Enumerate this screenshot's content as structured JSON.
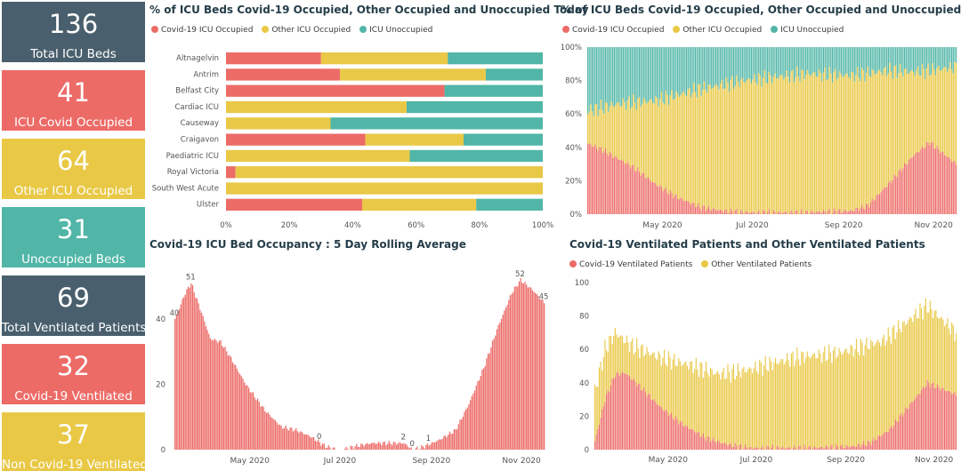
{
  "colors": {
    "covid": "#ec6b67",
    "other": "#e9c846",
    "unoccupied": "#51b6a7",
    "navy": "#495f6d"
  },
  "cards": [
    {
      "value": "136",
      "label": "Total ICU Beds",
      "color": "#495f6d"
    },
    {
      "value": "41",
      "label": "ICU Covid Occupied",
      "color": "#ec6b67"
    },
    {
      "value": "64",
      "label": "Other ICU Occupied",
      "color": "#e9c846"
    },
    {
      "value": "31",
      "label": "Unoccupied Beds",
      "color": "#51b6a7"
    },
    {
      "value": "69",
      "label": "Total Ventilated Patients",
      "color": "#495f6d"
    },
    {
      "value": "32",
      "label": "Covid-19 Ventilated",
      "color": "#ec6b67"
    },
    {
      "value": "37",
      "label": "Non Covid-19 Ventilated",
      "color": "#e9c846"
    }
  ],
  "chart_data": [
    {
      "type": "bar",
      "orientation": "horizontal",
      "stacked": true,
      "title": "% of ICU Beds Covid-19 Occupied, Other Occupied and Unoccupied Today",
      "categories": [
        "Altnagelvin",
        "Antrim",
        "Belfast City",
        "Cardiac ICU",
        "Causeway",
        "Craigavon",
        "Paediatric ICU",
        "Royal Victoria",
        "South West Acute",
        "Ulster"
      ],
      "series": [
        {
          "name": "Covid-19 ICU Occupied",
          "values": [
            30,
            36,
            69,
            0,
            0,
            44,
            0,
            3,
            0,
            43
          ]
        },
        {
          "name": "Other ICU Occupied",
          "values": [
            40,
            46,
            0,
            57,
            33,
            31,
            58,
            97,
            100,
            36
          ]
        },
        {
          "name": "ICU Unoccupied",
          "values": [
            30,
            18,
            31,
            43,
            67,
            25,
            42,
            0,
            0,
            21
          ]
        }
      ],
      "xlim": [
        0,
        100
      ],
      "xticks": [
        "0%",
        "20%",
        "40%",
        "60%",
        "80%",
        "100%"
      ],
      "legend": "top-left"
    },
    {
      "type": "bar",
      "stacked": true,
      "title": "% of ICU Beds Covid-19 Occupied, Other Occupied and Unoccupied",
      "x_range": [
        "2020-03-25",
        "2020-11-30"
      ],
      "series_names": [
        "Covid-19 ICU Occupied",
        "Other ICU Occupied",
        "ICU Unoccupied"
      ],
      "covid_pct_trend": [
        {
          "x": "2020-03-26",
          "y": 42
        },
        {
          "x": "2020-04-05",
          "y": 38
        },
        {
          "x": "2020-04-15",
          "y": 33
        },
        {
          "x": "2020-04-25",
          "y": 28
        },
        {
          "x": "2020-05-10",
          "y": 18
        },
        {
          "x": "2020-05-25",
          "y": 10
        },
        {
          "x": "2020-06-10",
          "y": 4
        },
        {
          "x": "2020-06-25",
          "y": 2
        },
        {
          "x": "2020-07-10",
          "y": 1
        },
        {
          "x": "2020-08-20",
          "y": 1
        },
        {
          "x": "2020-09-20",
          "y": 2
        },
        {
          "x": "2020-10-01",
          "y": 5
        },
        {
          "x": "2020-10-15",
          "y": 18
        },
        {
          "x": "2020-11-01",
          "y": 35
        },
        {
          "x": "2020-11-12",
          "y": 43
        },
        {
          "x": "2020-11-30",
          "y": 30
        }
      ],
      "occupied_pct_trend": [
        {
          "x": "2020-03-26",
          "y": 62
        },
        {
          "x": "2020-04-15",
          "y": 66
        },
        {
          "x": "2020-05-10",
          "y": 68
        },
        {
          "x": "2020-06-10",
          "y": 75
        },
        {
          "x": "2020-07-10",
          "y": 80
        },
        {
          "x": "2020-08-20",
          "y": 84
        },
        {
          "x": "2020-09-20",
          "y": 83
        },
        {
          "x": "2020-10-15",
          "y": 86
        },
        {
          "x": "2020-11-01",
          "y": 85
        },
        {
          "x": "2020-11-30",
          "y": 88
        }
      ],
      "ylim": [
        0,
        100
      ],
      "yticks": [
        "0%",
        "20%",
        "40%",
        "60%",
        "80%",
        "100%"
      ],
      "xticks": [
        "May 2020",
        "Jul 2020",
        "Sep 2020",
        "Nov 2020"
      ],
      "legend": "top-left"
    },
    {
      "type": "bar",
      "title": "Covid-19 ICU Bed Occupancy : 5 Day Rolling Average",
      "x_range": [
        "2020-03-25",
        "2020-11-30"
      ],
      "trend": [
        {
          "x": "2020-03-25",
          "y": 40
        },
        {
          "x": "2020-04-01",
          "y": 48
        },
        {
          "x": "2020-04-05",
          "y": 51
        },
        {
          "x": "2020-04-12",
          "y": 42
        },
        {
          "x": "2020-04-18",
          "y": 34
        },
        {
          "x": "2020-04-25",
          "y": 33
        },
        {
          "x": "2020-05-02",
          "y": 28
        },
        {
          "x": "2020-05-12",
          "y": 20
        },
        {
          "x": "2020-05-25",
          "y": 12
        },
        {
          "x": "2020-06-05",
          "y": 7
        },
        {
          "x": "2020-06-15",
          "y": 6
        },
        {
          "x": "2020-06-25",
          "y": 4
        },
        {
          "x": "2020-07-05",
          "y": 1
        },
        {
          "x": "2020-07-15",
          "y": 0
        },
        {
          "x": "2020-07-25",
          "y": 1
        },
        {
          "x": "2020-08-05",
          "y": 2
        },
        {
          "x": "2020-08-20",
          "y": 2
        },
        {
          "x": "2020-08-27",
          "y": 2
        },
        {
          "x": "2020-09-02",
          "y": 0
        },
        {
          "x": "2020-09-10",
          "y": 1
        },
        {
          "x": "2020-09-20",
          "y": 3
        },
        {
          "x": "2020-10-01",
          "y": 6
        },
        {
          "x": "2020-10-10",
          "y": 14
        },
        {
          "x": "2020-10-20",
          "y": 25
        },
        {
          "x": "2020-10-30",
          "y": 38
        },
        {
          "x": "2020-11-08",
          "y": 48
        },
        {
          "x": "2020-11-14",
          "y": 52
        },
        {
          "x": "2020-11-22",
          "y": 49
        },
        {
          "x": "2020-11-30",
          "y": 45
        }
      ],
      "data_labels": [
        {
          "x": "2020-03-25",
          "label": "40"
        },
        {
          "x": "2020-04-05",
          "label": "51"
        },
        {
          "x": "2020-07-01",
          "label": "0"
        },
        {
          "x": "2020-08-27",
          "label": "2"
        },
        {
          "x": "2020-09-02",
          "label": "0"
        },
        {
          "x": "2020-09-13",
          "label": "1"
        },
        {
          "x": "2020-11-14",
          "label": "52"
        },
        {
          "x": "2020-11-30",
          "label": "45"
        }
      ],
      "ylim": [
        0,
        55
      ],
      "yticks": [
        "0",
        "20",
        "40"
      ],
      "xticks": [
        "May 2020",
        "Jul 2020",
        "Sep 2020",
        "Nov 2020"
      ]
    },
    {
      "type": "bar",
      "title": "Covid-19 Ventilated Patients and Other Ventilated Patients",
      "x_range": [
        "2020-03-25",
        "2020-11-30"
      ],
      "series": [
        {
          "name": "Covid-19 Ventilated Patients",
          "trend": [
            {
              "x": "2020-03-25",
              "y": 5
            },
            {
              "x": "2020-04-01",
              "y": 30
            },
            {
              "x": "2020-04-08",
              "y": 45
            },
            {
              "x": "2020-04-15",
              "y": 46
            },
            {
              "x": "2020-04-25",
              "y": 38
            },
            {
              "x": "2020-05-10",
              "y": 25
            },
            {
              "x": "2020-05-25",
              "y": 15
            },
            {
              "x": "2020-06-10",
              "y": 7
            },
            {
              "x": "2020-06-25",
              "y": 3
            },
            {
              "x": "2020-07-10",
              "y": 1
            },
            {
              "x": "2020-08-20",
              "y": 1
            },
            {
              "x": "2020-09-20",
              "y": 2
            },
            {
              "x": "2020-10-01",
              "y": 4
            },
            {
              "x": "2020-10-15",
              "y": 12
            },
            {
              "x": "2020-11-01",
              "y": 30
            },
            {
              "x": "2020-11-10",
              "y": 40
            },
            {
              "x": "2020-11-30",
              "y": 33
            }
          ]
        },
        {
          "name": "Other Ventilated Patients",
          "total_trend": [
            {
              "x": "2020-03-25",
              "y": 35
            },
            {
              "x": "2020-04-01",
              "y": 60
            },
            {
              "x": "2020-04-08",
              "y": 70
            },
            {
              "x": "2020-04-20",
              "y": 62
            },
            {
              "x": "2020-05-10",
              "y": 55
            },
            {
              "x": "2020-06-01",
              "y": 50
            },
            {
              "x": "2020-06-20",
              "y": 45
            },
            {
              "x": "2020-07-10",
              "y": 48
            },
            {
              "x": "2020-08-10",
              "y": 55
            },
            {
              "x": "2020-09-10",
              "y": 58
            },
            {
              "x": "2020-10-10",
              "y": 65
            },
            {
              "x": "2020-11-01",
              "y": 80
            },
            {
              "x": "2020-11-10",
              "y": 86
            },
            {
              "x": "2020-11-30",
              "y": 70
            }
          ]
        }
      ],
      "ylim": [
        0,
        100
      ],
      "yticks": [
        "0",
        "20",
        "40",
        "60",
        "80",
        "100"
      ],
      "xticks": [
        "May 2020",
        "Jul 2020",
        "Sep 2020",
        "Nov 2020"
      ],
      "legend": "top-left"
    }
  ]
}
